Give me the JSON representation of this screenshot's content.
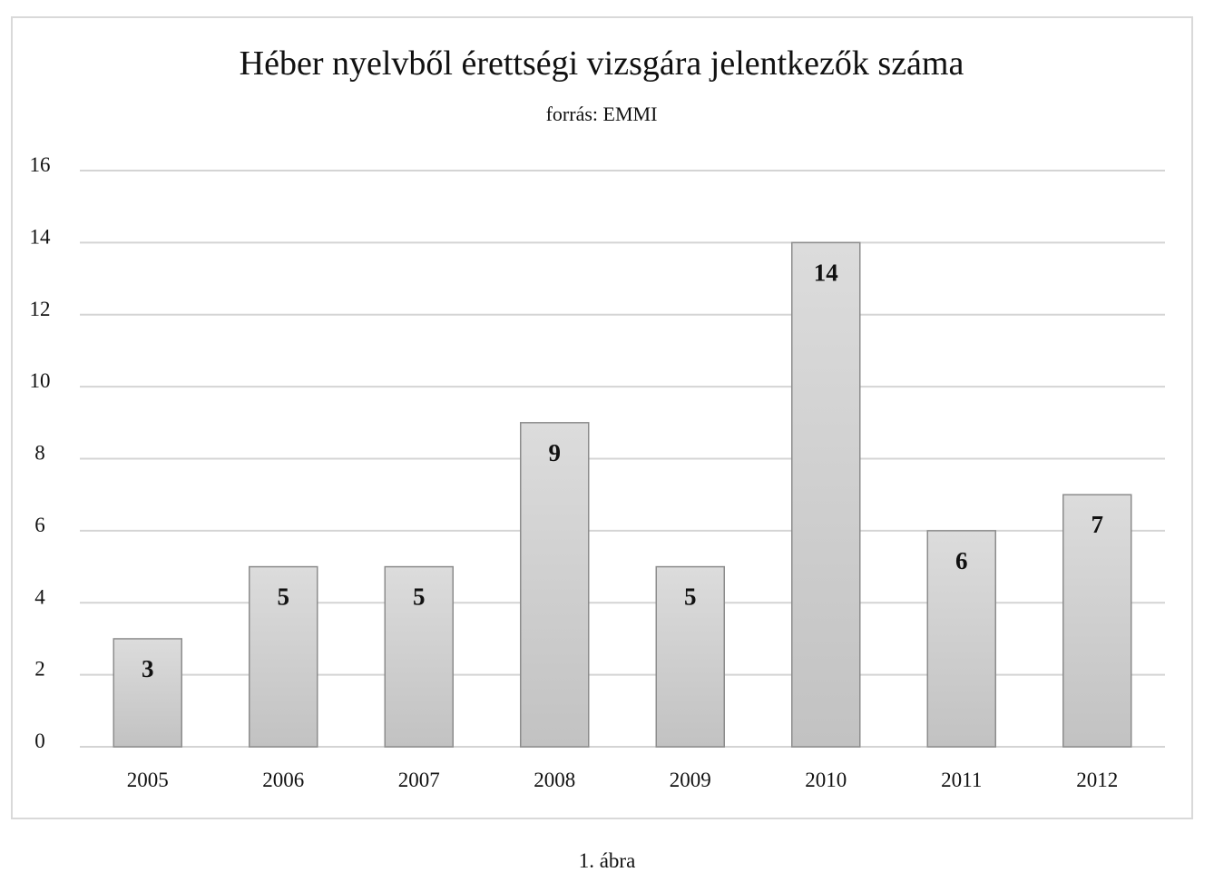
{
  "chart_data": {
    "type": "bar",
    "title": "Héber nyelvből érettségi vizsgára jelentkezők száma",
    "subtitle": "forrás: EMMI",
    "categories": [
      "2005",
      "2006",
      "2007",
      "2008",
      "2009",
      "2010",
      "2011",
      "2012"
    ],
    "values": [
      3,
      5,
      5,
      9,
      5,
      14,
      6,
      7
    ],
    "data_labels": [
      "3",
      "5",
      "5",
      "9",
      "5",
      "14",
      "6",
      "7"
    ],
    "y_ticks": [
      0,
      2,
      4,
      6,
      8,
      10,
      12,
      14,
      16
    ],
    "ylim": [
      0,
      16
    ],
    "xlabel": "",
    "ylabel": "",
    "grid": true,
    "legend": "none",
    "colors": {
      "bar_top": "#dcdcdc",
      "bar_bottom": "#c2c2c2",
      "bar_stroke": "#8c8c8c",
      "grid": "#d4d4d4"
    }
  },
  "caption": "1. ábra"
}
